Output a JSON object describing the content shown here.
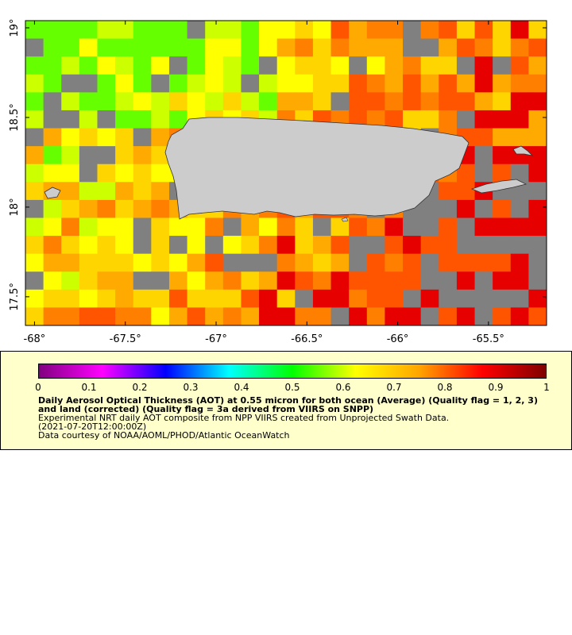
{
  "map": {
    "x_ticks": [
      "-68°",
      "-67.5°",
      "-67°",
      "-66.5°",
      "-66°",
      "-65.5°"
    ],
    "x_tick_values": [
      -68,
      -67.5,
      -67,
      -66.5,
      -66,
      -65.5
    ],
    "y_ticks": [
      "19°",
      "18.5°",
      "18°",
      "17.5°"
    ],
    "y_tick_values": [
      19,
      18.5,
      18,
      17.5
    ],
    "lon_range": [
      -68.05,
      -65.18
    ],
    "lat_range": [
      17.34,
      19.04
    ],
    "colors": {
      "land": "#cccccc",
      "missing": "#808080",
      "plot_border": "#000000"
    }
  },
  "legend": {
    "colorbar_ticks": [
      "0",
      "0.1",
      "0.2",
      "0.3",
      "0.4",
      "0.5",
      "0.6",
      "0.7",
      "0.8",
      "0.9",
      "1"
    ],
    "colorbar_values": [
      0,
      0.1,
      0.2,
      0.3,
      0.4,
      0.5,
      0.6,
      0.7,
      0.8,
      0.9,
      1
    ],
    "colorbar_gradient": [
      "#800080",
      "#ff00ff",
      "#0000ff",
      "#00ffff",
      "#00ff00",
      "#ffff00",
      "#ffa500",
      "#ff0000",
      "#800000"
    ],
    "title": "Daily Aerosol Optical Thickness (AOT) at 0.55 micron for both ocean (Average) (Quality flag = 1, 2, 3) and land (corrected) (Quality flag = 3a derived from VIIRS on SNPP)",
    "description": "Experimental NRT daily AOT composite from NPP VIIRS created from Unprojected Swath Data.",
    "time": "(2021-07-20T12:00:00Z)",
    "credit": "Data courtesy of NOAA/AOML/PHOD/Atlantic OceanWatch",
    "background": "#ffffcc"
  }
}
